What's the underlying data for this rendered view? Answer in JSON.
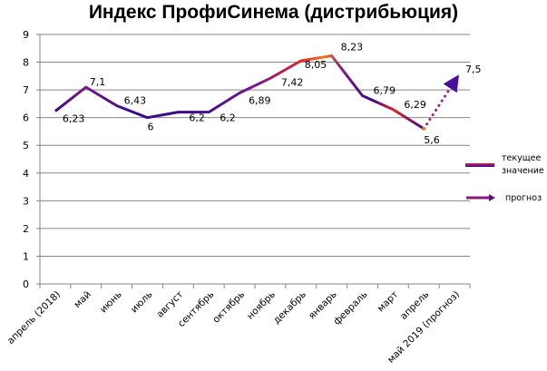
{
  "chart_data": {
    "type": "line",
    "title": "Индекс ПрофиСинема (дистрибьюция)",
    "xlabel": "",
    "ylabel": "",
    "ylim": [
      0,
      9
    ],
    "yticks": [
      0,
      1,
      2,
      3,
      4,
      5,
      6,
      7,
      8,
      9
    ],
    "grid": true,
    "legend_position": "right",
    "categories": [
      "апрель (2018)",
      "май",
      "июнь",
      "июль",
      "август",
      "сентябрь",
      "октябрь",
      "ноябрь",
      "декабрь",
      "январь",
      "февраль",
      "март",
      "апрель",
      "май 2019 (прогноз)"
    ],
    "series": [
      {
        "name": "текущее значение",
        "style": "solid gradient line",
        "values": [
          6.23,
          7.1,
          6.43,
          6,
          6.2,
          6.2,
          6.89,
          7.42,
          8.05,
          8.23,
          6.79,
          6.29,
          5.6,
          null
        ]
      },
      {
        "name": "прогноз",
        "style": "dotted arrow",
        "values": [
          null,
          null,
          null,
          null,
          null,
          null,
          null,
          null,
          null,
          null,
          null,
          null,
          5.6,
          7.5
        ]
      }
    ],
    "data_labels": [
      "6,23",
      "7,1",
      "6,43",
      "6",
      "6,2",
      "6,2",
      "6,89",
      "7,42",
      "8,05",
      "8,23",
      "6,79",
      "6,29",
      "5,6",
      "7,5"
    ],
    "legend": [
      {
        "label_line1": "текущее",
        "label_line2": "значение"
      },
      {
        "label_line1": "прогноз",
        "label_line2": ""
      }
    ]
  },
  "colors": {
    "line_dark": "#3b0a8a",
    "line_purple": "#7a1a8a",
    "line_red": "#e0202a",
    "line_orange": "#f07a1a",
    "forecast": "#a0208a",
    "grid": "#868686"
  }
}
